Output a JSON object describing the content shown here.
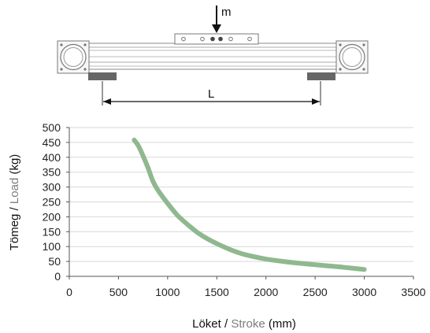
{
  "diagram": {
    "load_label": "m",
    "length_label": "L"
  },
  "chart_data": {
    "type": "line",
    "xlabel_main": "Löket",
    "xlabel_sep": " / ",
    "xlabel_accent": "Stroke",
    "xlabel_unit": " (mm)",
    "ylabel_main": "Tömeg",
    "ylabel_sep": " / ",
    "ylabel_accent": "Load",
    "ylabel_unit": " (kg)",
    "xlim": [
      0,
      3500
    ],
    "ylim": [
      0,
      500
    ],
    "x_ticks": [
      0,
      500,
      1000,
      1500,
      2000,
      2500,
      3000,
      3500
    ],
    "y_ticks": [
      0,
      50,
      100,
      150,
      200,
      250,
      300,
      350,
      400,
      450,
      500
    ],
    "grid": "horizontal",
    "series": [
      {
        "x": [
          660,
          700,
          750,
          800,
          850,
          900,
          1000,
          1100,
          1200,
          1300,
          1400,
          1500,
          1600,
          1700,
          1800,
          2000,
          2200,
          2400,
          2600,
          2800,
          3000
        ],
        "y": [
          458,
          440,
          405,
          365,
          320,
          290,
          245,
          205,
          175,
          148,
          127,
          110,
          95,
          82,
          72,
          58,
          49,
          42,
          36,
          30,
          23
        ],
        "color": "#8fb88f"
      }
    ]
  },
  "colors": {
    "curve": "#8fb88f",
    "accent_text": "#7d7d7d",
    "grid": "#d9d9d9"
  }
}
